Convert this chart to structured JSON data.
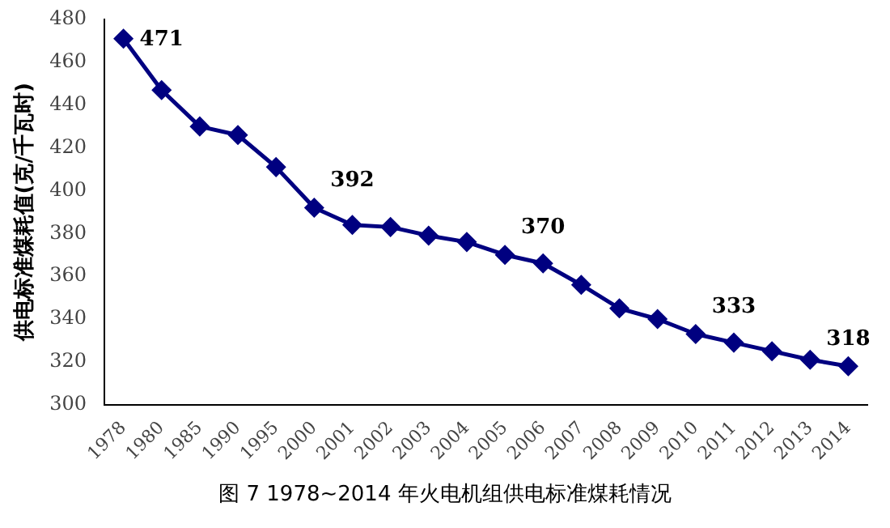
{
  "chart_data": {
    "type": "line",
    "title": "图 7  1978~2014 年火电机组供电标准煤耗情况",
    "ylabel": "供电标准煤耗值(克/千瓦时)",
    "categories": [
      "1978",
      "1980",
      "1985",
      "1990",
      "1995",
      "2000",
      "2001",
      "2002",
      "2003",
      "2004",
      "2005",
      "2006",
      "2007",
      "2008",
      "2009",
      "2010",
      "2011",
      "2012",
      "2013",
      "2014"
    ],
    "series": [
      {
        "color": "#000080",
        "values": [
          471,
          447,
          430,
          426,
          411,
          392,
          384,
          383,
          379,
          376,
          370,
          366,
          356,
          345,
          340,
          333,
          329,
          325,
          321,
          318
        ],
        "value_labels": [
          "471",
          null,
          null,
          null,
          null,
          "392",
          null,
          null,
          null,
          null,
          "370",
          null,
          null,
          null,
          null,
          "333",
          null,
          null,
          null,
          "318"
        ]
      }
    ],
    "ylim": [
      300,
      480
    ],
    "yticks": [
      300,
      320,
      340,
      360,
      380,
      400,
      420,
      440,
      460,
      480
    ],
    "grid": false,
    "legend": false,
    "marker": "diamond",
    "line_style": "solid"
  }
}
